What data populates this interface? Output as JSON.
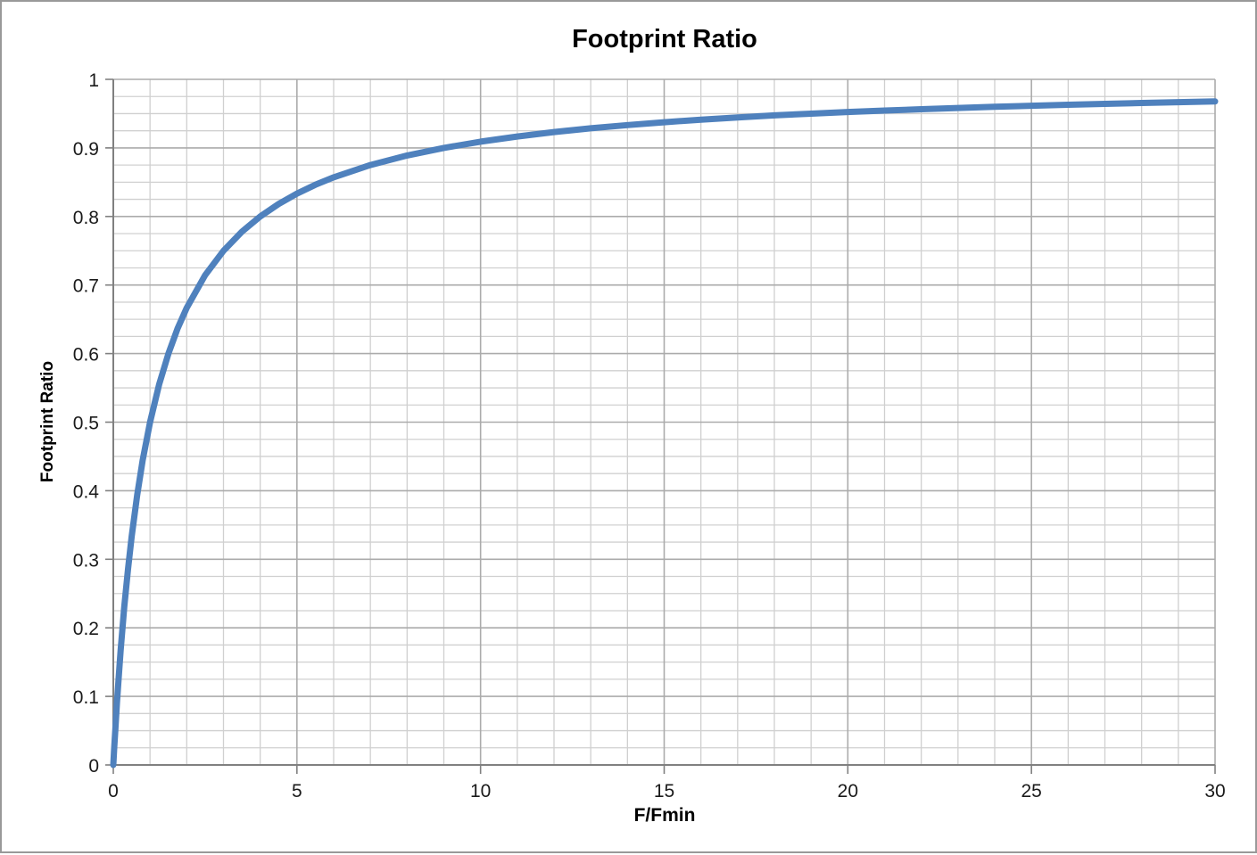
{
  "chart_data": {
    "type": "line",
    "title": "Footprint Ratio",
    "xlabel": "F/Fmin",
    "ylabel": "Footprint Ratio",
    "xlim": [
      0,
      30
    ],
    "ylim": [
      0,
      1
    ],
    "x_major_ticks": [
      0,
      5,
      10,
      15,
      20,
      25,
      30
    ],
    "y_major_ticks": [
      0,
      0.1,
      0.2,
      0.3,
      0.4,
      0.5,
      0.6,
      0.7,
      0.8,
      0.9,
      1
    ],
    "x_minor_step": 1,
    "y_minor_step": 0.025,
    "grid": "major-and-minor",
    "legend_position": "none",
    "colors": {
      "series": "#4F81BD",
      "major_grid": "#ABABAB",
      "minor_grid": "#D0D0D0",
      "axis": "#808080",
      "text": "#1a1a1a"
    },
    "series": [
      {
        "name": "Footprint Ratio",
        "x": [
          0,
          0.025,
          0.05,
          0.1,
          0.15,
          0.2,
          0.3,
          0.4,
          0.5,
          0.65,
          0.8,
          1,
          1.25,
          1.5,
          1.75,
          2,
          2.5,
          3,
          3.5,
          4,
          4.5,
          5,
          5.5,
          6,
          7,
          8,
          9,
          10,
          11,
          12,
          13,
          14,
          15,
          16,
          17,
          18,
          19,
          20,
          21,
          22,
          23,
          24,
          25,
          26,
          27,
          28,
          29,
          30
        ],
        "y": [
          0,
          0.0244,
          0.0476,
          0.0909,
          0.1304,
          0.1667,
          0.2308,
          0.2857,
          0.3333,
          0.3939,
          0.4444,
          0.5,
          0.5556,
          0.6,
          0.6364,
          0.6667,
          0.7143,
          0.75,
          0.7778,
          0.8,
          0.8182,
          0.8333,
          0.8462,
          0.8571,
          0.875,
          0.8889,
          0.9,
          0.9091,
          0.9167,
          0.9231,
          0.9286,
          0.9333,
          0.9375,
          0.9412,
          0.9444,
          0.9474,
          0.95,
          0.9524,
          0.9545,
          0.9565,
          0.9583,
          0.96,
          0.9615,
          0.963,
          0.9643,
          0.9655,
          0.9667,
          0.9677
        ]
      }
    ]
  }
}
